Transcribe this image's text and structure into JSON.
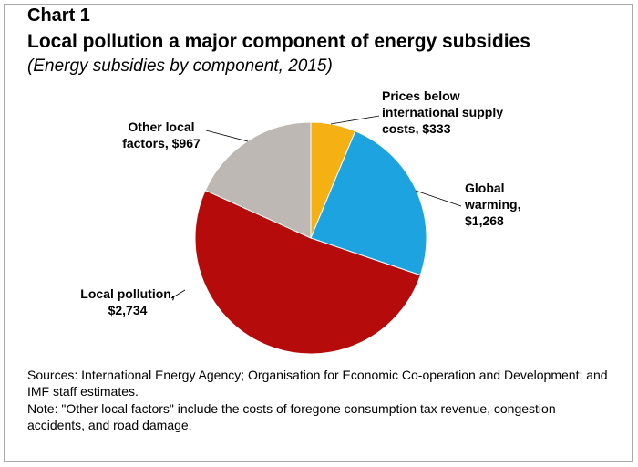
{
  "header": {
    "chart_label": "Chart 1",
    "title": "Local pollution a major component of energy subsidies",
    "subtitle": "(Energy subsidies by component, 2015)"
  },
  "chart_data": {
    "type": "pie",
    "title": "Local pollution a major component of energy subsidies",
    "subtitle": "(Energy subsidies by component, 2015)",
    "slices": [
      {
        "category": "Prices below international supply costs",
        "value": 333,
        "label_lines": [
          "Prices below",
          "international supply",
          "costs, $333"
        ],
        "color": "#f5b014"
      },
      {
        "category": "Global warming",
        "value": 1268,
        "label_lines": [
          "Global",
          "warming,",
          "$1,268"
        ],
        "color": "#1ca3e0"
      },
      {
        "category": "Local pollution",
        "value": 2734,
        "label_lines": [
          "Local pollution,",
          "$2,734"
        ],
        "color": "#b60b0b"
      },
      {
        "category": "Other local factors",
        "value": 967,
        "label_lines": [
          "Other local",
          "factors, $967"
        ],
        "color": "#bdb8b3"
      }
    ]
  },
  "footer": {
    "sources": "Sources: International Energy Agency; Organisation for Economic Co-operation and Development; and IMF staff estimates.",
    "note": "Note: \"Other local factors\" include the costs of foregone consumption tax revenue, congestion accidents, and road damage."
  }
}
